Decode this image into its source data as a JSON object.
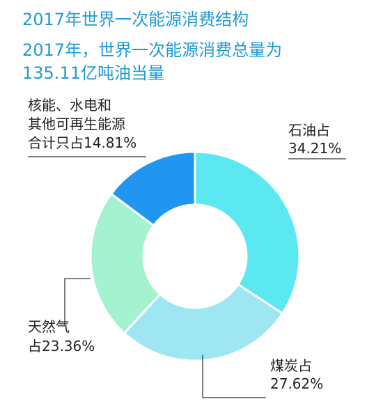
{
  "title": "2017年世界一次能源消费结构",
  "subtitle": "2017年，世界一次能源消费总量为\n135.11亿吨油当量",
  "chart_data": {
    "type": "pie",
    "donut": true,
    "slices": [
      {
        "name": "石油",
        "label_lines": [
          "石油占",
          "34.21%"
        ],
        "value": 34.21,
        "color": "#5ce8f0"
      },
      {
        "name": "煤炭",
        "label_lines": [
          "煤炭占",
          "27.62%"
        ],
        "value": 27.62,
        "color": "#9ee6f2"
      },
      {
        "name": "天然气",
        "label_lines": [
          "天然气",
          "占23.36%"
        ],
        "value": 23.36,
        "color": "#a4f2d0"
      },
      {
        "name": "核能、水电和其他可再生能源",
        "label_lines": [
          "核能、水电和",
          "其他可再生能源",
          "合计只占14.81%"
        ],
        "value": 14.81,
        "color": "#2196f0"
      }
    ]
  }
}
